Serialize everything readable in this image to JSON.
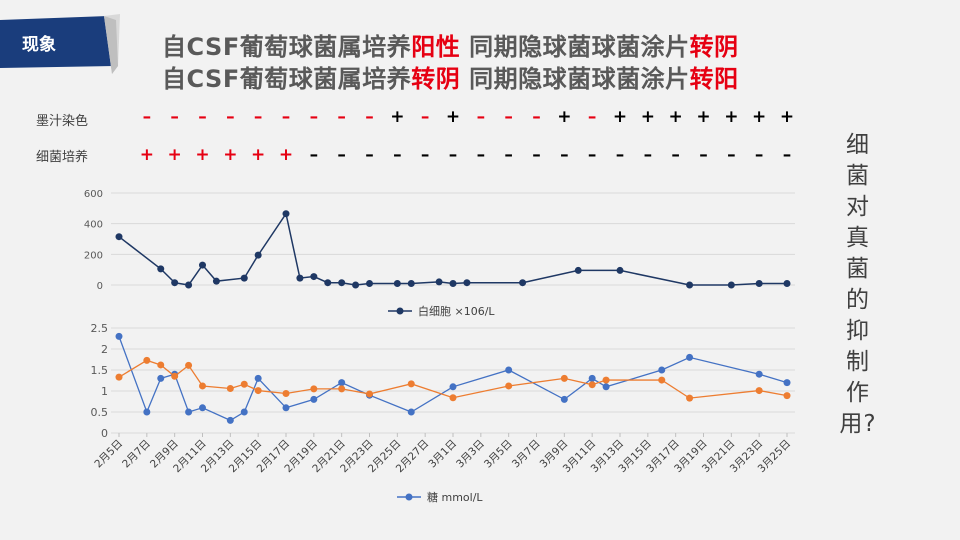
{
  "section_label": "现象",
  "title_lines": [
    {
      "pre": "自CSF葡萄球菌属培养",
      "hl1": "阳性",
      "mid": " 同期隐球菌球菌涂片",
      "hl2": "转阴"
    },
    {
      "pre": "自CSF葡萄球菌属培养",
      "hl1": "转阴",
      "mid": " 同期隐球菌球菌涂片",
      "hl2": "转阳"
    }
  ],
  "stain_label": "墨汁染色",
  "culture_label": "细菌培养",
  "side_text": "细菌对真菌的抑制作用?",
  "colors": {
    "accent": "#e60012",
    "wbc": "#1f3864",
    "glucose": "#4472c4",
    "orange": "#ed7d31",
    "banner": "#1a3d7c"
  },
  "stain_marks": [
    {
      "x": 2,
      "s": "–",
      "c": "red"
    },
    {
      "x": 4,
      "s": "–",
      "c": "red"
    },
    {
      "x": 6,
      "s": "–",
      "c": "red"
    },
    {
      "x": 8,
      "s": "–",
      "c": "red"
    },
    {
      "x": 10,
      "s": "–",
      "c": "red"
    },
    {
      "x": 12,
      "s": "–",
      "c": "red"
    },
    {
      "x": 14,
      "s": "–",
      "c": "red"
    },
    {
      "x": 16,
      "s": "–",
      "c": "red"
    },
    {
      "x": 18,
      "s": "–",
      "c": "red"
    },
    {
      "x": 20,
      "s": "+",
      "c": "black"
    },
    {
      "x": 22,
      "s": "–",
      "c": "red"
    },
    {
      "x": 24,
      "s": "+",
      "c": "black"
    },
    {
      "x": 26,
      "s": "–",
      "c": "red"
    },
    {
      "x": 28,
      "s": "–",
      "c": "red"
    },
    {
      "x": 30,
      "s": "–",
      "c": "red"
    },
    {
      "x": 32,
      "s": "+",
      "c": "black"
    },
    {
      "x": 34,
      "s": "–",
      "c": "red"
    },
    {
      "x": 36,
      "s": "+",
      "c": "black"
    },
    {
      "x": 38,
      "s": "+",
      "c": "black"
    },
    {
      "x": 40,
      "s": "+",
      "c": "black"
    },
    {
      "x": 42,
      "s": "+",
      "c": "black"
    },
    {
      "x": 44,
      "s": "+",
      "c": "black"
    },
    {
      "x": 46,
      "s": "+",
      "c": "black"
    },
    {
      "x": 48,
      "s": "+",
      "c": "black"
    }
  ],
  "culture_marks": [
    {
      "x": 2,
      "s": "+",
      "c": "red"
    },
    {
      "x": 4,
      "s": "+",
      "c": "red"
    },
    {
      "x": 6,
      "s": "+",
      "c": "red"
    },
    {
      "x": 8,
      "s": "+",
      "c": "red"
    },
    {
      "x": 10,
      "s": "+",
      "c": "red"
    },
    {
      "x": 12,
      "s": "+",
      "c": "red"
    },
    {
      "x": 14,
      "s": "–",
      "c": "black"
    },
    {
      "x": 16,
      "s": "–",
      "c": "black"
    },
    {
      "x": 18,
      "s": "–",
      "c": "black"
    },
    {
      "x": 20,
      "s": "–",
      "c": "black"
    },
    {
      "x": 22,
      "s": "–",
      "c": "black"
    },
    {
      "x": 24,
      "s": "–",
      "c": "black"
    },
    {
      "x": 26,
      "s": "–",
      "c": "black"
    },
    {
      "x": 28,
      "s": "–",
      "c": "black"
    },
    {
      "x": 30,
      "s": "–",
      "c": "black"
    },
    {
      "x": 32,
      "s": "–",
      "c": "black"
    },
    {
      "x": 34,
      "s": "–",
      "c": "black"
    },
    {
      "x": 36,
      "s": "–",
      "c": "black"
    },
    {
      "x": 38,
      "s": "–",
      "c": "black"
    },
    {
      "x": 40,
      "s": "–",
      "c": "black"
    },
    {
      "x": 42,
      "s": "–",
      "c": "black"
    },
    {
      "x": 44,
      "s": "–",
      "c": "black"
    },
    {
      "x": 46,
      "s": "–",
      "c": "black"
    },
    {
      "x": 48,
      "s": "–",
      "c": "black"
    }
  ],
  "chart_data": [
    {
      "type": "line",
      "ylim": [
        0,
        600
      ],
      "yticks": [
        0,
        200,
        400,
        600
      ],
      "grid": true,
      "legend": "bottom",
      "series": [
        {
          "name": "白细胞 ×106/L",
          "x": [
            0,
            3,
            4,
            5,
            6,
            7,
            9,
            10,
            12,
            13,
            14,
            15,
            16,
            17,
            18,
            20,
            21,
            23,
            24,
            25,
            29,
            33,
            36,
            41,
            44,
            46,
            48
          ],
          "values": [
            315,
            105,
            15,
            0,
            130,
            25,
            45,
            195,
            465,
            45,
            55,
            15,
            15,
            0,
            10,
            10,
            10,
            20,
            10,
            15,
            15,
            95,
            95,
            0,
            0,
            10,
            10
          ]
        }
      ]
    },
    {
      "type": "line",
      "ylim": [
        0,
        2.5
      ],
      "yticks": [
        0,
        0.5,
        1,
        1.5,
        2,
        2.5
      ],
      "grid": true,
      "legend": "bottom",
      "categories": [
        "2月5日",
        "2月7日",
        "2月9日",
        "2月11日",
        "2月13日",
        "2月15日",
        "2月17日",
        "2月19日",
        "2月21日",
        "2月23日",
        "2月25日",
        "2月27日",
        "3月1日",
        "3月3日",
        "3月5日",
        "3月7日",
        "3月9日",
        "3月11日",
        "3月13日",
        "3月15日",
        "3月17日",
        "3月19日",
        "3月21日",
        "3月23日",
        "3月25日"
      ],
      "series": [
        {
          "name": "糖 mmol/L",
          "x": [
            0,
            2,
            3,
            4,
            5,
            6,
            8,
            9,
            10,
            12,
            14,
            16,
            18,
            21,
            24,
            28,
            32,
            34,
            35,
            39,
            41,
            46,
            48
          ],
          "values": [
            2.3,
            0.5,
            1.3,
            1.4,
            0.5,
            0.6,
            0.3,
            0.5,
            1.3,
            0.6,
            0.8,
            1.2,
            0.9,
            0.5,
            1.1,
            1.5,
            0.8,
            1.3,
            1.1,
            1.5,
            1.8,
            1.4,
            1.2
          ]
        },
        {
          "name": "",
          "x": [
            0,
            2,
            3,
            4,
            5,
            6,
            8,
            9,
            10,
            12,
            14,
            16,
            18,
            21,
            24,
            28,
            32,
            34,
            35,
            39,
            41,
            46,
            48
          ],
          "values": [
            1.33,
            1.73,
            1.62,
            1.35,
            1.61,
            1.12,
            1.06,
            1.16,
            1.01,
            0.94,
            1.05,
            1.05,
            0.93,
            1.17,
            0.84,
            1.12,
            1.3,
            1.15,
            1.26,
            1.26,
            0.83,
            1.01,
            0.89
          ]
        }
      ]
    }
  ]
}
